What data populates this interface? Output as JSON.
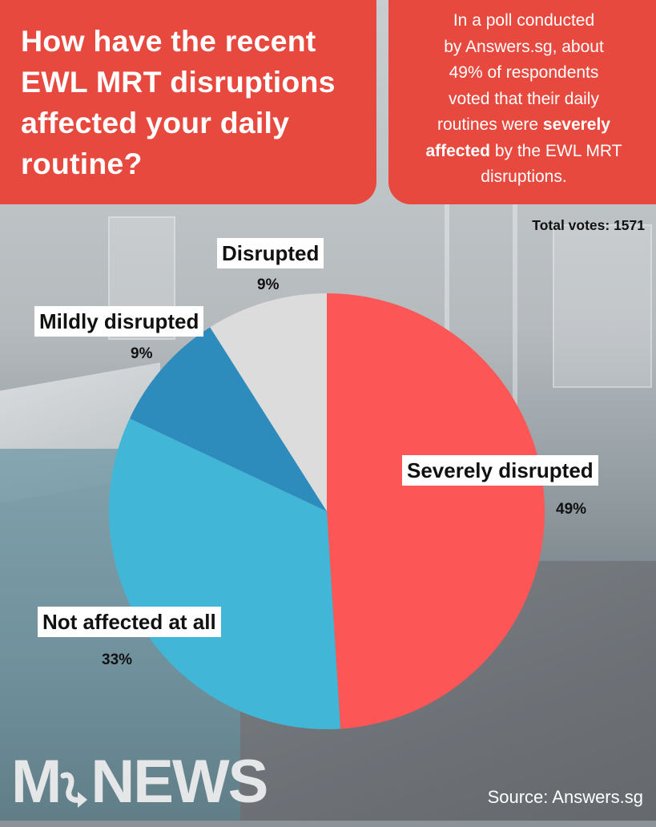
{
  "header": {
    "title_lines": [
      "How have the recent",
      "EWL MRT disruptions",
      "affected your daily",
      "routine?"
    ],
    "summary": {
      "lines": [
        "In a poll conducted",
        "by Answers.sg, about",
        "49% of respondents",
        "voted that their daily"
      ],
      "line5_prefix": "routines were ",
      "line5_bold": "severely",
      "line6_bold": "affected",
      "line6_suffix": " by the EWL MRT",
      "line7": "disruptions."
    }
  },
  "total_votes_label": "Total votes: 1571",
  "colors": {
    "header_red": "#e8493f",
    "severely": "#fd5656",
    "not_affected": "#42b6d6",
    "mildly": "#2e8cbd",
    "disrupted": "#dcdcdc"
  },
  "labels": {
    "disrupted": {
      "name": "Disrupted",
      "pct": "9%"
    },
    "mildly": {
      "name": "Mildly disrupted",
      "pct": "9%"
    },
    "severely": {
      "name": "Severely disrupted",
      "pct": "49%"
    },
    "not_affected": {
      "name": "Not affected at all",
      "pct": "33%"
    }
  },
  "footer": {
    "logo_text_left": "M",
    "logo_text_right": "NEWS",
    "source": "Source: Answers.sg"
  },
  "chart_data": {
    "type": "pie",
    "title": "How have the recent EWL MRT disruptions affected your daily routine?",
    "total_votes": 1571,
    "categories": [
      "Severely disrupted",
      "Not affected at all",
      "Mildly disrupted",
      "Disrupted"
    ],
    "values": [
      49,
      33,
      9,
      9
    ],
    "unit": "%",
    "colors": [
      "#fd5656",
      "#42b6d6",
      "#2e8cbd",
      "#dcdcdc"
    ],
    "start_angle": "12 o'clock, clockwise",
    "source": "Answers.sg"
  }
}
